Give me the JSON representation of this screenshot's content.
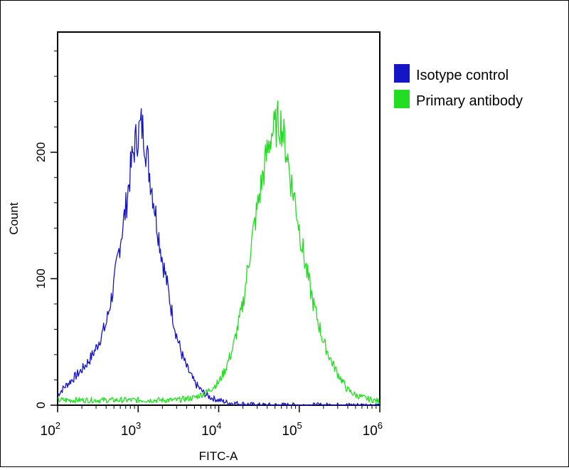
{
  "chart_data": {
    "type": "line",
    "title": "",
    "xlabel": "FITC-A",
    "ylabel": "Count",
    "x_scale": "log",
    "xlim": [
      100,
      1000000
    ],
    "ylim": [
      0,
      295
    ],
    "x_ticks": [
      {
        "value": 100,
        "base": "10",
        "exp": "2"
      },
      {
        "value": 1000,
        "base": "10",
        "exp": "3"
      },
      {
        "value": 10000,
        "base": "10",
        "exp": "4"
      },
      {
        "value": 100000,
        "base": "10",
        "exp": "5"
      },
      {
        "value": 1000000,
        "base": "10",
        "exp": "6"
      }
    ],
    "y_ticks": [
      {
        "value": 0,
        "label": "0"
      },
      {
        "value": 100,
        "label": "100"
      },
      {
        "value": 200,
        "label": "200"
      }
    ],
    "legend": {
      "position": "top-right"
    },
    "series": [
      {
        "name": "Isotype control",
        "color": "#1515c8",
        "x": [
          100,
          120,
          150,
          200,
          250,
          300,
          400,
          500,
          600,
          700,
          800,
          900,
          1000,
          1100,
          1200,
          1300,
          1500,
          1700,
          2000,
          2300,
          2600,
          3000,
          3500,
          4000,
          5000,
          6000,
          7000,
          8000,
          10000,
          13000,
          20000,
          30000,
          50000
        ],
        "y": [
          8,
          14,
          20,
          28,
          36,
          45,
          64,
          95,
          130,
          155,
          185,
          205,
          215,
          222,
          212,
          195,
          170,
          145,
          115,
          95,
          75,
          55,
          40,
          30,
          18,
          12,
          8,
          6,
          4,
          2,
          1,
          0,
          0
        ]
      },
      {
        "name": "Primary antibody",
        "color": "#22dd22",
        "x": [
          100,
          300,
          1000,
          3000,
          5000,
          7000,
          10000,
          12000,
          15000,
          20000,
          25000,
          30000,
          35000,
          40000,
          45000,
          50000,
          55000,
          60000,
          65000,
          70000,
          80000,
          90000,
          100000,
          120000,
          150000,
          200000,
          250000,
          300000,
          400000,
          500000,
          700000,
          1000000
        ],
        "y": [
          4,
          4,
          4,
          4,
          6,
          10,
          18,
          28,
          45,
          80,
          125,
          155,
          180,
          200,
          215,
          218,
          225,
          222,
          210,
          200,
          175,
          160,
          140,
          110,
          80,
          50,
          35,
          25,
          12,
          8,
          5,
          3
        ]
      }
    ]
  }
}
